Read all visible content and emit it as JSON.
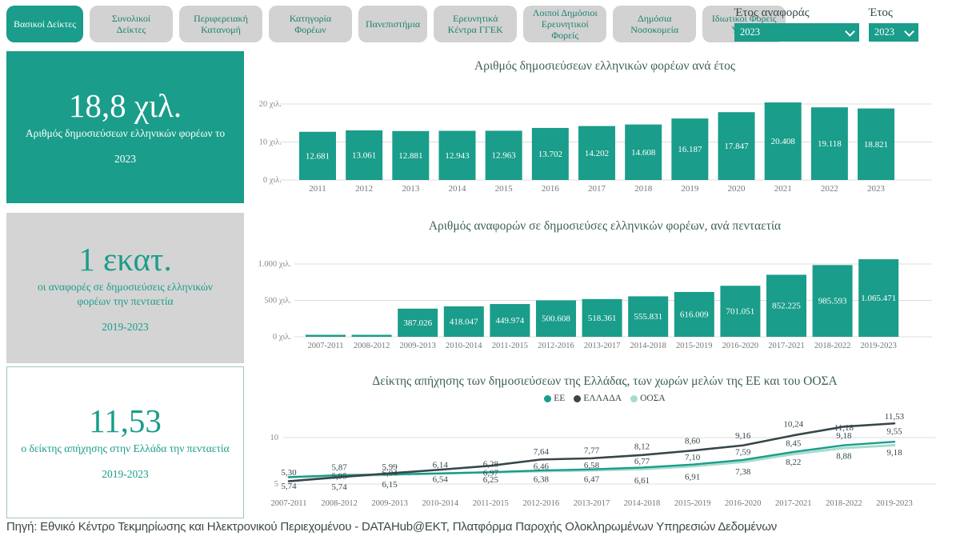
{
  "topbar": {
    "tabs": [
      {
        "label": "Βασικοί Δείκτες",
        "active": true
      },
      {
        "label": "Συνολικοί Δείκτες",
        "active": false
      },
      {
        "label": "Περιφερειακή Κατανομή",
        "active": false
      },
      {
        "label": "Κατηγορία Φορέων",
        "active": false
      },
      {
        "label": "Πανεπιστήμια",
        "active": false
      },
      {
        "label": "Ερευνητικά Κέντρα ΓΓΕΚ",
        "active": false
      },
      {
        "label": "Λοιποί Δημόσιοι Ερευνητικοί Φορείς",
        "active": false
      },
      {
        "label": "Δημόσια Νοσοκομεία",
        "active": false
      },
      {
        "label": "Ιδιωτικοί Φορείς Υγείας",
        "active": false
      }
    ],
    "filters": [
      {
        "label": "Έτος αναφοράς",
        "value": "2023"
      },
      {
        "label": "Έτος",
        "value": "2023"
      }
    ]
  },
  "cards": [
    {
      "value": "18,8 χιλ.",
      "line1": "Αριθμός δημοσιεύσεων ελληνικών φορέων το",
      "line2": "2023"
    },
    {
      "value": "1 εκατ.",
      "line1": "οι αναφορές σε δημοσιεύσεις ελληνικών φορέων την πενταετία",
      "line2": "2019-2023"
    },
    {
      "value": "11,53",
      "line1": "ο δείκτης απήχησης στην Ελλάδα την πενταετία",
      "line2": "2019-2023"
    }
  ],
  "chart_data": [
    {
      "type": "bar",
      "title": "Αριθμός δημοσιεύσεων ελληνικών φορέων ανά έτος",
      "categories": [
        "2011",
        "2012",
        "2013",
        "2014",
        "2015",
        "2016",
        "2017",
        "2018",
        "2019",
        "2020",
        "2021",
        "2022",
        "2023"
      ],
      "values": [
        12681,
        13061,
        12881,
        12943,
        12963,
        13702,
        14202,
        14608,
        16187,
        17847,
        20408,
        19118,
        18821
      ],
      "bar_labels": [
        "12.681",
        "13.061",
        "12.881",
        "12.943",
        "12.963",
        "13.702",
        "14.202",
        "14.608",
        "16.187",
        "17.847",
        "20.408",
        "19.118",
        "18.821"
      ],
      "y_ticks": [
        {
          "value": 20000,
          "label": "20 χιλ."
        },
        {
          "value": 10000,
          "label": "10 χιλ."
        },
        {
          "value": 0,
          "label": "0 χιλ."
        }
      ],
      "ylim": [
        0,
        20000
      ],
      "xlabel": "",
      "ylabel": "",
      "grid": true,
      "bar_color": "#1A9D8A"
    },
    {
      "type": "bar",
      "title": "Αριθμός αναφορών σε δημοσιεύσες ελληνικών φορέων, ανά πενταετία",
      "categories": [
        "2007-2011",
        "2008-2012",
        "2009-2013",
        "2010-2014",
        "2011-2015",
        "2012-2016",
        "2013-2017",
        "2014-2018",
        "2015-2019",
        "2016-2020",
        "2017-2021",
        "2018-2022",
        "2019-2023"
      ],
      "values": [
        null,
        null,
        387026,
        418047,
        449974,
        500608,
        518361,
        555831,
        616009,
        701051,
        852225,
        985593,
        1065471
      ],
      "bar_labels": [
        "",
        "",
        "387.026",
        "418.047",
        "449.974",
        "500.608",
        "518.361",
        "555.831",
        "616.009",
        "701.051",
        "852.225",
        "985.593",
        "1.065.471"
      ],
      "y_ticks": [
        {
          "value": 1000000,
          "label": "1.000 χιλ."
        },
        {
          "value": 500000,
          "label": "500 χιλ."
        },
        {
          "value": 0,
          "label": "0 χιλ."
        }
      ],
      "ylim": [
        0,
        1100000
      ],
      "xlabel": "",
      "ylabel": "",
      "grid": true,
      "bar_color": "#1A9D8A"
    },
    {
      "type": "line",
      "title": "Δείκτης απήχησης των δημοσιεύσεων της Ελλάδας, των χωρών μελών της ΕΕ και του ΟΟΣΑ",
      "categories": [
        "2007-2011",
        "2008-2012",
        "2009-2013",
        "2010-2014",
        "2011-2015",
        "2012-2016",
        "2013-2017",
        "2014-2018",
        "2015-2019",
        "2016-2020",
        "2017-2021",
        "2018-2022",
        "2019-2023"
      ],
      "series": [
        {
          "name": "ΕΕ",
          "color": "#1A9D8A",
          "z": 2,
          "stroke": 2.4,
          "values": [
            5.74,
            5.95,
            6.04,
            6.14,
            6.28,
            6.46,
            6.58,
            6.77,
            7.1,
            7.59,
            8.45,
            9.18,
            9.55
          ],
          "labels": [
            "",
            "5,95",
            "6,04",
            "6,14",
            "6,28",
            "6,46",
            "6,58",
            "6,77",
            "7,10",
            "7,59",
            "8,45",
            "9,18",
            "9,55"
          ],
          "label_dy": [
            0,
            1,
            -2,
            -11,
            -10,
            -5,
            -5,
            -8,
            -9,
            -10,
            -11,
            -12,
            -13
          ]
        },
        {
          "name": "ΕΛΛΑΔΑ",
          "color": "#374649",
          "z": 3,
          "stroke": 2.6,
          "values": [
            5.3,
            5.74,
            6.15,
            6.54,
            6.97,
            7.64,
            7.77,
            8.12,
            8.6,
            9.16,
            10.24,
            11.18,
            11.53
          ],
          "labels": [
            "5,30",
            "5,74",
            "6,15",
            "6,54",
            "6,97",
            "7,64",
            "7,77",
            "8,12",
            "8,60",
            "9,16",
            "10,24",
            "11,18",
            "11,53"
          ],
          "label_dy": [
            -11,
            12,
            14,
            12,
            9,
            -10,
            -10,
            -11,
            -12,
            -12,
            -14,
            1,
            -9
          ]
        },
        {
          "name": "ΟΟΣΑ",
          "color": "#A7DBCE",
          "z": 1,
          "stroke": 3,
          "values": [
            5.74,
            5.87,
            5.99,
            6.14,
            6.25,
            6.38,
            6.47,
            6.61,
            6.91,
            7.38,
            8.22,
            8.88,
            9.18
          ],
          "labels": [
            "5,74",
            "5,87",
            "5,99",
            "",
            "6,25",
            "6,38",
            "6,47",
            "6,61",
            "6,91",
            "7,38",
            "8,22",
            "8,88",
            "9,18"
          ],
          "label_dy": [
            11,
            -11,
            -10,
            0,
            9,
            10,
            11,
            14,
            13,
            12,
            10,
            10,
            9
          ]
        }
      ],
      "y_ticks": [
        {
          "value": 10,
          "label": "10"
        },
        {
          "value": 5,
          "label": "5"
        }
      ],
      "ylim": [
        4.7,
        12
      ],
      "legend_position": "top-center",
      "grid": true
    }
  ],
  "footer": {
    "text": "Πηγή:  Εθνικό Κέντρο Τεκμηρίωσης και Ηλεκτρονικού Περιεχομένου - DATAHub@EKT,  Πλατφόρμα Παροχής Ολοκληρωμένων Υπηρεσιών Δεδομένων"
  },
  "colors": {
    "teal": "#1A9D8A",
    "dark": "#374649",
    "light_teal": "#A7DBCE",
    "tab_bg": "#D2D2D2",
    "title_text": "#3C6059"
  }
}
